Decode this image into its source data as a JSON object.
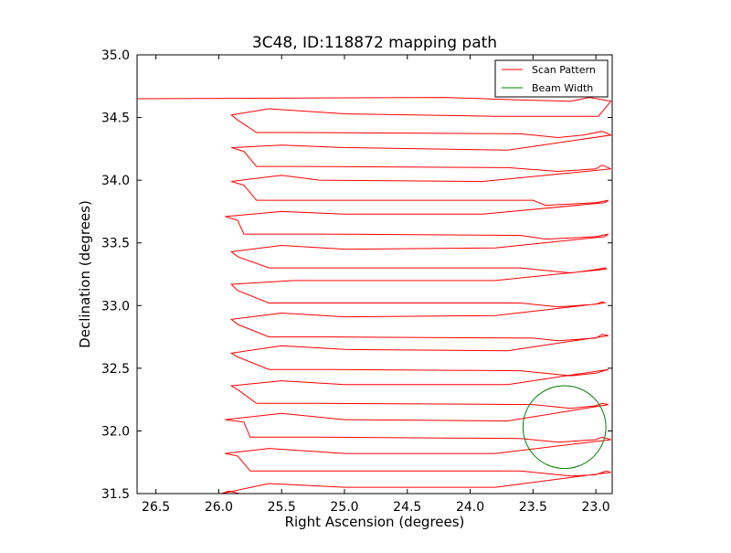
{
  "chart_data": {
    "type": "line",
    "title": "3C48, ID:118872 mapping path",
    "xlabel": "Right Ascension (degrees)",
    "ylabel": "Declination (degrees)",
    "xlim": [
      26.65,
      22.87
    ],
    "ylim": [
      31.5,
      35.0
    ],
    "x_inverted": true,
    "grid": false,
    "legend_placement": "top-right",
    "xticks": [
      "26.5",
      "26.0",
      "25.5",
      "25.0",
      "24.5",
      "24.0",
      "23.5",
      "23.0"
    ],
    "yticks": [
      "31.5",
      "32.0",
      "32.5",
      "33.0",
      "33.5",
      "34.0",
      "34.5",
      "35.0"
    ],
    "series": [
      {
        "name": "Scan Pattern",
        "color": "#ff0000",
        "ra": [
          26.65,
          24.2,
          23.6,
          23.2,
          23.05,
          22.88,
          22.98,
          23.8,
          25.0,
          25.6,
          25.9,
          25.85,
          25.7,
          25.35,
          23.6,
          23.3,
          23.1,
          22.95,
          22.88,
          23.7,
          25.0,
          25.5,
          25.9,
          25.8,
          25.7,
          25.35,
          23.7,
          23.3,
          23.0,
          22.95,
          22.88,
          23.9,
          25.2,
          25.5,
          25.9,
          25.8,
          25.7,
          25.3,
          23.5,
          23.4,
          23.0,
          22.9,
          22.93,
          23.9,
          25.0,
          25.5,
          25.95,
          25.85,
          25.8,
          25.2,
          23.6,
          23.4,
          23.0,
          22.9,
          22.93,
          23.8,
          25.0,
          25.5,
          25.9,
          25.85,
          25.6,
          25.2,
          23.6,
          23.2,
          23.05,
          22.92,
          22.92,
          23.8,
          25.0,
          25.4,
          25.9,
          25.85,
          25.6,
          25.3,
          23.6,
          23.3,
          23.0,
          22.95,
          22.93,
          23.8,
          25.0,
          25.5,
          25.9,
          25.85,
          25.6,
          25.1,
          23.5,
          23.3,
          23.0,
          22.95,
          22.9,
          23.7,
          25.0,
          25.5,
          25.9,
          25.85,
          25.6,
          25.1,
          23.6,
          23.2,
          23.0,
          22.9,
          22.9,
          23.7,
          25.0,
          25.5,
          25.9,
          25.85,
          25.7,
          25.2,
          23.5,
          23.2,
          23.0,
          22.95,
          22.9,
          23.7,
          25.0,
          25.5,
          25.95,
          25.8,
          25.75,
          25.2,
          23.6,
          23.3,
          23.0,
          22.95,
          22.88,
          23.8,
          25.0,
          25.6,
          25.95,
          25.85,
          25.75,
          25.2,
          23.6,
          23.2,
          23.0,
          22.92,
          22.88,
          23.8,
          25.0,
          25.6,
          25.98,
          25.92,
          25.75,
          25.0,
          23.5,
          23.3,
          22.9
        ],
        "dec": [
          34.65,
          34.66,
          34.64,
          34.63,
          34.66,
          34.63,
          34.51,
          34.51,
          34.53,
          34.57,
          34.52,
          34.48,
          34.38,
          34.38,
          34.37,
          34.34,
          34.36,
          34.39,
          34.36,
          34.24,
          34.26,
          34.28,
          34.26,
          34.23,
          34.11,
          34.11,
          34.1,
          34.07,
          34.09,
          34.12,
          34.09,
          33.99,
          34.0,
          34.04,
          33.99,
          33.96,
          33.84,
          33.84,
          33.84,
          33.8,
          33.82,
          33.84,
          33.82,
          33.73,
          33.73,
          33.75,
          33.71,
          33.68,
          33.57,
          33.57,
          33.56,
          33.53,
          33.55,
          33.57,
          33.55,
          33.46,
          33.45,
          33.48,
          33.43,
          33.39,
          33.3,
          33.3,
          33.3,
          33.26,
          33.28,
          33.3,
          33.29,
          33.2,
          33.2,
          33.2,
          33.17,
          33.12,
          33.02,
          33.02,
          33.02,
          32.99,
          33.01,
          33.03,
          33.02,
          32.92,
          32.91,
          32.94,
          32.89,
          32.85,
          32.75,
          32.75,
          32.74,
          32.72,
          32.74,
          32.77,
          32.76,
          32.64,
          32.65,
          32.68,
          32.62,
          32.59,
          32.49,
          32.49,
          32.48,
          32.44,
          32.46,
          32.49,
          32.49,
          32.37,
          32.37,
          32.4,
          32.36,
          32.33,
          32.22,
          32.22,
          32.21,
          32.18,
          32.2,
          32.22,
          32.21,
          32.08,
          32.09,
          32.14,
          32.09,
          32.07,
          31.95,
          31.95,
          31.94,
          31.91,
          31.93,
          31.95,
          31.93,
          31.82,
          31.82,
          31.86,
          31.82,
          31.8,
          31.68,
          31.68,
          31.68,
          31.64,
          31.65,
          31.68,
          31.67,
          31.55,
          31.55,
          31.58,
          31.5,
          31.52,
          31.48,
          31.47,
          31.47,
          31.43,
          31.46
        ]
      },
      {
        "name": "Beam Width",
        "color": "#008000",
        "circle": {
          "center_ra": 23.25,
          "center_dec": 32.03,
          "radius_deg": 0.33
        }
      }
    ]
  }
}
